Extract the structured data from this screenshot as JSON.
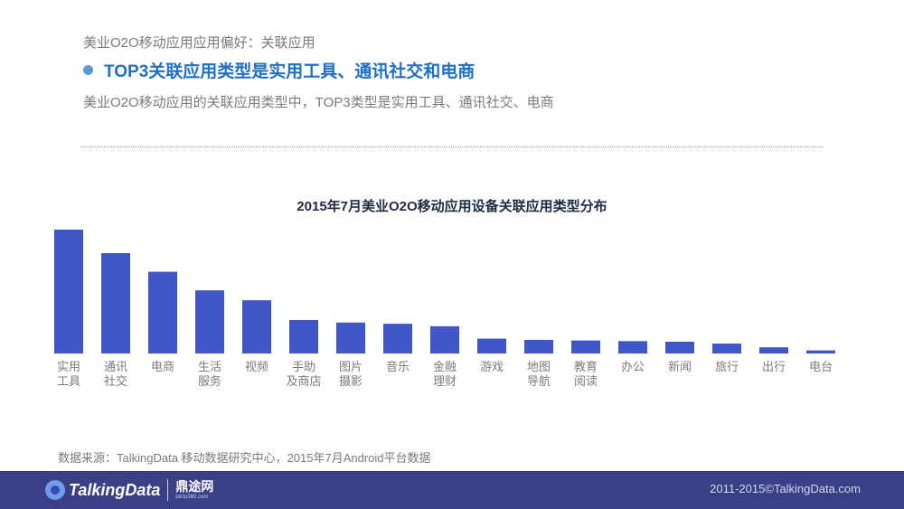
{
  "header": {
    "breadcrumb": "美业O2O移动应用应用偏好：关联应用",
    "headline": "TOP3关联应用类型是实用工具、通讯社交和电商",
    "subline": "美业O2O移动应用的关联应用类型中，TOP3类型是实用工具、通讯社交、电商"
  },
  "colors": {
    "accent": "#1f6fc5",
    "bullet": "#5b9bd5",
    "bar": "#3f57c8",
    "footer_bg": "#3b3f86",
    "tick_label": "#7a7a7a"
  },
  "chart_data": {
    "type": "bar",
    "title": "2015年7月美业O2O移动应用设备关联应用类型分布",
    "categories": [
      [
        "实用",
        "工具"
      ],
      [
        "通讯",
        "社交"
      ],
      [
        "电商"
      ],
      [
        "生活",
        "服务"
      ],
      [
        "视频"
      ],
      [
        "手助",
        "及商店"
      ],
      [
        "图片",
        "摄影"
      ],
      [
        "音乐"
      ],
      [
        "金融",
        "理财"
      ],
      [
        "游戏"
      ],
      [
        "地图",
        "导航"
      ],
      [
        "教育",
        "阅读"
      ],
      [
        "办公"
      ],
      [
        "新闻"
      ],
      [
        "旅行"
      ],
      [
        "出行"
      ],
      [
        "电台"
      ]
    ],
    "values": [
      100,
      81,
      66,
      51,
      43,
      27,
      25,
      24,
      22,
      12,
      11,
      10.5,
      10,
      9.5,
      8,
      5,
      2.5
    ],
    "ylim": [
      0,
      100
    ],
    "grid": false,
    "xlabel": "",
    "ylabel": ""
  },
  "source": "数据来源：TalkingData 移动数据研究中心，2015年7月Android平台数据",
  "footer": {
    "logo_text": "TalkingData",
    "partner_logo": "鼎途网",
    "partner_sub": "pintu360.com",
    "copyright": "2011-2015©TalkingData.com"
  }
}
